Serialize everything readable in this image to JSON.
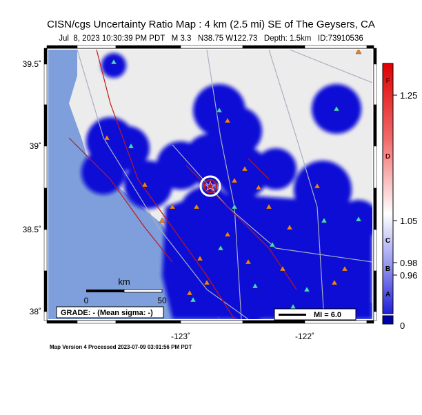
{
  "header": {
    "title": "CISN/cgs Uncertainty Ratio Map : 4 km (2.5 mi) SE of The Geysers, CA",
    "subtitle": "Jul  8, 2023 10:30:39 PM PDT   M 3.3   N38.75 W122.73   Depth: 1.5km   ID:73910536"
  },
  "map": {
    "lat_labels": [
      "39.5˚",
      "39˚",
      "38.5˚",
      "38˚"
    ],
    "lon_labels": [
      "-123˚",
      "-122˚"
    ],
    "scale_bar": {
      "unit": "km",
      "start": "0",
      "end": "50"
    },
    "grade": "GRADE: - (Mean sigma: -)",
    "mi_legend": "MI = 6.0"
  },
  "colorbar": {
    "ticks": [
      "1.25",
      "1.05",
      "0.98",
      "0.96",
      "0"
    ],
    "grades": [
      "F",
      "D",
      "C",
      "B",
      "A"
    ]
  },
  "footer": "Map Version 4 Processed 2023-07-09 03:01:56 PM PDT"
}
